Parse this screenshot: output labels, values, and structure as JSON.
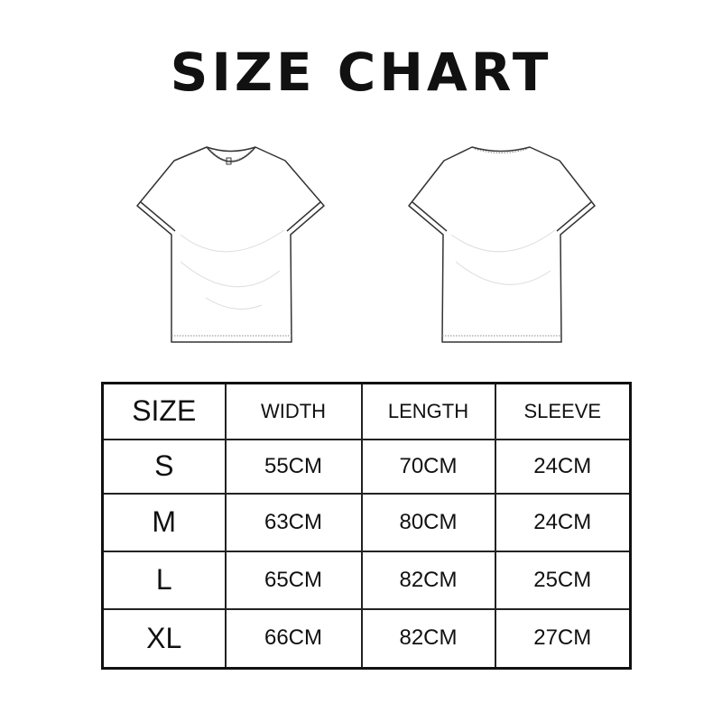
{
  "title": "SIZE CHART",
  "illustrations": [
    "t-shirt-front",
    "t-shirt-back"
  ],
  "table": {
    "headers": [
      "SIZE",
      "WIDTH",
      "LENGTH",
      "SLEEVE"
    ],
    "rows": [
      [
        "S",
        "55CM",
        "70CM",
        "24CM"
      ],
      [
        "M",
        "63CM",
        "80CM",
        "24CM"
      ],
      [
        "L",
        "65CM",
        "82CM",
        "25CM"
      ],
      [
        "XL",
        "66CM",
        "82CM",
        "27CM"
      ]
    ]
  }
}
